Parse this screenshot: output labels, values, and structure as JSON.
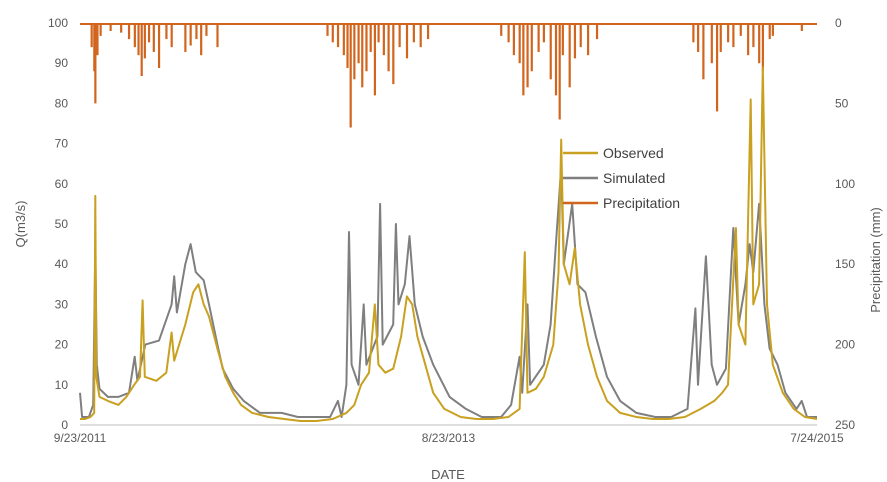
{
  "chart_data": {
    "type": "line",
    "title": "",
    "xlabel": "DATE",
    "ylabel": "Q(m3/s)",
    "y2label": "Precipitation (mm)",
    "x_ticks": [
      "9/23/2011",
      "8/23/2013",
      "7/24/2015"
    ],
    "x_range": [
      "9/23/2011",
      "7/24/2015"
    ],
    "ylim": [
      0,
      100
    ],
    "y_ticks": [
      "0",
      "10",
      "20",
      "30",
      "40",
      "50",
      "60",
      "70",
      "80",
      "90",
      "100"
    ],
    "y2lim": [
      0,
      250
    ],
    "y2_reversed": true,
    "y2_ticks": [
      "0",
      "50",
      "100",
      "150",
      "200",
      "250"
    ],
    "grid": false,
    "legend_position": "right",
    "series": [
      {
        "name": "Observed",
        "color": "#c9a020",
        "axis": "left",
        "points": [
          [
            "9/23/2011",
            1.5
          ],
          [
            "10/3/2011",
            1.5
          ],
          [
            "10/13/2011",
            2
          ],
          [
            "10/20/2011",
            3
          ],
          [
            "10/22/2011",
            57
          ],
          [
            "10/24/2011",
            12
          ],
          [
            "10/30/2011",
            7
          ],
          [
            "11/15/2011",
            6
          ],
          [
            "12/5/2011",
            5
          ],
          [
            "12/20/2011",
            7
          ],
          [
            "1/4/2012",
            10
          ],
          [
            "1/15/2012",
            12
          ],
          [
            "1/20/2012",
            31
          ],
          [
            "1/24/2012",
            12
          ],
          [
            "2/15/2012",
            11
          ],
          [
            "3/5/2012",
            13
          ],
          [
            "3/15/2012",
            23
          ],
          [
            "3/20/2012",
            16
          ],
          [
            "4/10/2012",
            25
          ],
          [
            "4/25/2012",
            33
          ],
          [
            "5/5/2012",
            35
          ],
          [
            "5/15/2012",
            30
          ],
          [
            "5/25/2012",
            27
          ],
          [
            "6/10/2012",
            19
          ],
          [
            "6/25/2012",
            12
          ],
          [
            "7/10/2012",
            8
          ],
          [
            "7/25/2012",
            5
          ],
          [
            "8/15/2012",
            3
          ],
          [
            "9/15/2012",
            2
          ],
          [
            "10/15/2012",
            1.5
          ],
          [
            "11/15/2012",
            1
          ],
          [
            "12/15/2012",
            1
          ],
          [
            "1/15/2013",
            1.5
          ],
          [
            "2/10/2013",
            3
          ],
          [
            "2/25/2013",
            5
          ],
          [
            "3/10/2013",
            10
          ],
          [
            "3/25/2013",
            13
          ],
          [
            "4/5/2013",
            30
          ],
          [
            "4/12/2013",
            15
          ],
          [
            "4/25/2013",
            13
          ],
          [
            "5/10/2013",
            14
          ],
          [
            "5/25/2013",
            22
          ],
          [
            "6/5/2013",
            32
          ],
          [
            "6/15/2013",
            30
          ],
          [
            "6/25/2013",
            22
          ],
          [
            "7/10/2013",
            15
          ],
          [
            "7/25/2013",
            8
          ],
          [
            "8/15/2013",
            4
          ],
          [
            "9/15/2013",
            2
          ],
          [
            "10/15/2013",
            1.5
          ],
          [
            "11/15/2013",
            1.5
          ],
          [
            "12/15/2013",
            2
          ],
          [
            "1/5/2014",
            4
          ],
          [
            "1/15/2014",
            43
          ],
          [
            "1/20/2014",
            8
          ],
          [
            "2/5/2014",
            9
          ],
          [
            "2/20/2014",
            12
          ],
          [
            "3/10/2014",
            20
          ],
          [
            "3/20/2014",
            38
          ],
          [
            "3/25/2014",
            71
          ],
          [
            "3/30/2014",
            40
          ],
          [
            "4/10/2014",
            35
          ],
          [
            "4/20/2014",
            44
          ],
          [
            "4/30/2014",
            30
          ],
          [
            "5/15/2014",
            20
          ],
          [
            "6/1/2014",
            12
          ],
          [
            "6/20/2014",
            6
          ],
          [
            "7/15/2014",
            3
          ],
          [
            "8/15/2014",
            2
          ],
          [
            "9/15/2014",
            1.5
          ],
          [
            "10/15/2014",
            1.5
          ],
          [
            "11/15/2014",
            2
          ],
          [
            "12/15/2014",
            4
          ],
          [
            "1/10/2015",
            6
          ],
          [
            "1/25/2015",
            8
          ],
          [
            "2/5/2015",
            10
          ],
          [
            "2/20/2015",
            49
          ],
          [
            "2/25/2015",
            25
          ],
          [
            "3/10/2015",
            20
          ],
          [
            "3/20/2015",
            81
          ],
          [
            "3/25/2015",
            30
          ],
          [
            "4/5/2015",
            35
          ],
          [
            "4/12/2015",
            89
          ],
          [
            "4/20/2015",
            30
          ],
          [
            "5/1/2015",
            15
          ],
          [
            "5/20/2015",
            8
          ],
          [
            "6/10/2015",
            4
          ],
          [
            "7/1/2015",
            2
          ],
          [
            "7/24/2015",
            1.5
          ]
        ]
      },
      {
        "name": "Simulated",
        "color": "#7f7f7f",
        "axis": "left",
        "points": [
          [
            "9/23/2011",
            8
          ],
          [
            "9/27/2011",
            2
          ],
          [
            "10/10/2011",
            2
          ],
          [
            "10/18/2011",
            5
          ],
          [
            "10/22/2011",
            44
          ],
          [
            "10/25/2011",
            15
          ],
          [
            "10/30/2011",
            9
          ],
          [
            "11/15/2011",
            7
          ],
          [
            "12/5/2011",
            7
          ],
          [
            "12/25/2011",
            8
          ],
          [
            "1/5/2012",
            17
          ],
          [
            "1/10/2012",
            11
          ],
          [
            "1/25/2012",
            20
          ],
          [
            "2/20/2012",
            21
          ],
          [
            "3/15/2012",
            30
          ],
          [
            "3/20/2012",
            37
          ],
          [
            "3/25/2012",
            28
          ],
          [
            "4/10/2012",
            40
          ],
          [
            "4/20/2012",
            45
          ],
          [
            "4/30/2012",
            38
          ],
          [
            "5/15/2012",
            36
          ],
          [
            "5/25/2012",
            30
          ],
          [
            "6/10/2012",
            20
          ],
          [
            "6/20/2012",
            14
          ],
          [
            "7/10/2012",
            9
          ],
          [
            "7/30/2012",
            6
          ],
          [
            "8/30/2012",
            3
          ],
          [
            "10/10/2012",
            3
          ],
          [
            "11/10/2012",
            2
          ],
          [
            "12/10/2012",
            2
          ],
          [
            "1/10/2013",
            2
          ],
          [
            "1/25/2013",
            6
          ],
          [
            "2/1/2013",
            2
          ],
          [
            "2/10/2013",
            10
          ],
          [
            "2/15/2013",
            48
          ],
          [
            "2/20/2013",
            15
          ],
          [
            "3/5/2013",
            10
          ],
          [
            "3/15/2013",
            30
          ],
          [
            "3/20/2013",
            15
          ],
          [
            "4/10/2013",
            22
          ],
          [
            "4/15/2013",
            55
          ],
          [
            "4/20/2013",
            20
          ],
          [
            "5/10/2013",
            25
          ],
          [
            "5/15/2013",
            50
          ],
          [
            "5/20/2013",
            30
          ],
          [
            "6/1/2013",
            35
          ],
          [
            "6/10/2013",
            47
          ],
          [
            "6/20/2013",
            30
          ],
          [
            "7/5/2013",
            22
          ],
          [
            "7/25/2013",
            15
          ],
          [
            "8/25/2013",
            7
          ],
          [
            "9/25/2013",
            4
          ],
          [
            "10/25/2013",
            2
          ],
          [
            "12/1/2013",
            2
          ],
          [
            "12/20/2013",
            5
          ],
          [
            "1/5/2014",
            17
          ],
          [
            "1/10/2014",
            8
          ],
          [
            "1/20/2014",
            30
          ],
          [
            "1/25/2014",
            10
          ],
          [
            "2/20/2014",
            15
          ],
          [
            "3/5/2014",
            25
          ],
          [
            "3/15/2014",
            45
          ],
          [
            "3/25/2014",
            64
          ],
          [
            "3/30/2014",
            40
          ],
          [
            "4/15/2014",
            55
          ],
          [
            "4/25/2014",
            35
          ],
          [
            "5/10/2014",
            33
          ],
          [
            "5/30/2014",
            22
          ],
          [
            "6/20/2014",
            12
          ],
          [
            "7/15/2014",
            6
          ],
          [
            "8/15/2014",
            3
          ],
          [
            "9/20/2014",
            2
          ],
          [
            "10/20/2014",
            2
          ],
          [
            "11/20/2014",
            4
          ],
          [
            "12/5/2014",
            29
          ],
          [
            "12/10/2014",
            10
          ],
          [
            "12/25/2014",
            42
          ],
          [
            "1/5/2015",
            15
          ],
          [
            "1/15/2015",
            10
          ],
          [
            "2/1/2015",
            14
          ],
          [
            "2/15/2015",
            49
          ],
          [
            "2/25/2015",
            25
          ],
          [
            "3/10/2015",
            35
          ],
          [
            "3/18/2015",
            45
          ],
          [
            "3/25/2015",
            38
          ],
          [
            "4/5/2015",
            55
          ],
          [
            "4/15/2015",
            30
          ],
          [
            "4/25/2015",
            19
          ],
          [
            "5/10/2015",
            15
          ],
          [
            "5/25/2015",
            8
          ],
          [
            "6/15/2015",
            4
          ],
          [
            "6/25/2015",
            6
          ],
          [
            "7/5/2015",
            2
          ],
          [
            "7/24/2015",
            2
          ]
        ]
      },
      {
        "name": "Precipitation",
        "color": "#d2651e",
        "axis": "right",
        "bars": [
          [
            "10/15/2011",
            15
          ],
          [
            "10/20/2011",
            30
          ],
          [
            "10/22/2011",
            50
          ],
          [
            "10/26/2011",
            20
          ],
          [
            "11/1/2011",
            8
          ],
          [
            "11/20/2011",
            5
          ],
          [
            "12/10/2011",
            6
          ],
          [
            "12/25/2011",
            10
          ],
          [
            "1/5/2012",
            15
          ],
          [
            "1/12/2012",
            20
          ],
          [
            "1/18/2012",
            33
          ],
          [
            "1/24/2012",
            22
          ],
          [
            "2/1/2012",
            12
          ],
          [
            "2/10/2012",
            18
          ],
          [
            "2/20/2012",
            28
          ],
          [
            "3/5/2012",
            10
          ],
          [
            "3/15/2012",
            15
          ],
          [
            "4/10/2012",
            18
          ],
          [
            "4/20/2012",
            14
          ],
          [
            "5/1/2012",
            10
          ],
          [
            "5/10/2012",
            20
          ],
          [
            "5/20/2012",
            8
          ],
          [
            "6/10/2012",
            15
          ],
          [
            "1/5/2013",
            8
          ],
          [
            "1/15/2013",
            12
          ],
          [
            "1/25/2013",
            15
          ],
          [
            "2/5/2013",
            20
          ],
          [
            "2/12/2013",
            28
          ],
          [
            "2/18/2013",
            65
          ],
          [
            "2/25/2013",
            35
          ],
          [
            "3/5/2013",
            25
          ],
          [
            "3/12/2013",
            40
          ],
          [
            "3/20/2013",
            30
          ],
          [
            "3/28/2013",
            18
          ],
          [
            "4/5/2013",
            45
          ],
          [
            "4/12/2013",
            12
          ],
          [
            "4/22/2013",
            20
          ],
          [
            "5/1/2013",
            30
          ],
          [
            "5/10/2013",
            38
          ],
          [
            "5/22/2013",
            15
          ],
          [
            "6/5/2013",
            22
          ],
          [
            "6/18/2013",
            12
          ],
          [
            "7/1/2013",
            15
          ],
          [
            "7/15/2013",
            10
          ],
          [
            "12/1/2013",
            8
          ],
          [
            "12/15/2013",
            12
          ],
          [
            "12/25/2013",
            20
          ],
          [
            "1/5/2014",
            25
          ],
          [
            "1/12/2014",
            45
          ],
          [
            "1/20/2014",
            40
          ],
          [
            "1/28/2014",
            30
          ],
          [
            "2/10/2014",
            18
          ],
          [
            "2/20/2014",
            12
          ],
          [
            "3/5/2014",
            35
          ],
          [
            "3/15/2014",
            45
          ],
          [
            "3/22/2014",
            60
          ],
          [
            "3/28/2014",
            20
          ],
          [
            "4/10/2014",
            40
          ],
          [
            "4/20/2014",
            22
          ],
          [
            "5/1/2014",
            15
          ],
          [
            "5/15/2014",
            20
          ],
          [
            "6/1/2014",
            10
          ],
          [
            "12/1/2014",
            12
          ],
          [
            "12/10/2014",
            18
          ],
          [
            "12/20/2014",
            35
          ],
          [
            "1/5/2015",
            25
          ],
          [
            "1/15/2015",
            55
          ],
          [
            "1/22/2015",
            18
          ],
          [
            "2/5/2015",
            12
          ],
          [
            "2/15/2015",
            15
          ],
          [
            "3/1/2015",
            8
          ],
          [
            "3/15/2015",
            20
          ],
          [
            "3/25/2015",
            15
          ],
          [
            "4/5/2015",
            25
          ],
          [
            "4/12/2015",
            30
          ],
          [
            "4/25/2015",
            10
          ],
          [
            "5/1/2015",
            8
          ],
          [
            "6/25/2015",
            5
          ]
        ]
      }
    ]
  }
}
